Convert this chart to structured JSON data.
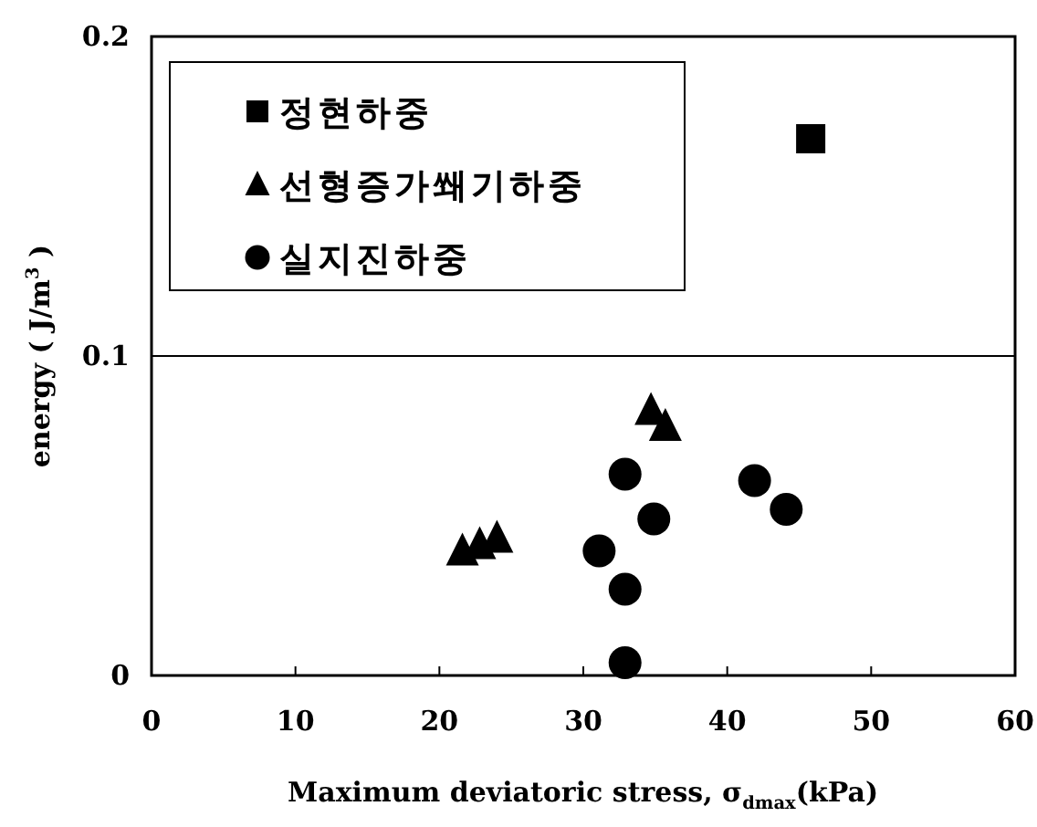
{
  "chart_data": {
    "type": "scatter",
    "xlabel": "Maximum deviatoric stress, σ$_{dmax}$(kPa)",
    "ylabel": "energy ( J/m$^{3}$ )",
    "xlim": [
      0,
      60
    ],
    "ylim": [
      0,
      0.2
    ],
    "xticks": [
      0,
      10,
      20,
      30,
      40,
      50,
      60
    ],
    "yticks": [
      0,
      0.1,
      0.2
    ],
    "grid": "y",
    "legend": "top left",
    "series": [
      {
        "name": "정현하중",
        "color": "#000000",
        "marker": "square",
        "x": [
          45.8
        ],
        "values": [
          0.168
        ]
      },
      {
        "name": "선형증가쐐기하중",
        "color": "#000000",
        "marker": "triangle",
        "x": [
          34.7,
          35.7,
          21.6,
          22.8,
          24.0
        ],
        "values": [
          0.083,
          0.078,
          0.039,
          0.041,
          0.043
        ]
      },
      {
        "name": "실지진하중",
        "color": "#000000",
        "marker": "circle",
        "x": [
          32.9,
          41.9,
          44.1,
          34.9,
          31.1,
          32.9,
          32.9
        ],
        "values": [
          0.063,
          0.061,
          0.052,
          0.049,
          0.039,
          0.027,
          0.004
        ]
      }
    ]
  }
}
